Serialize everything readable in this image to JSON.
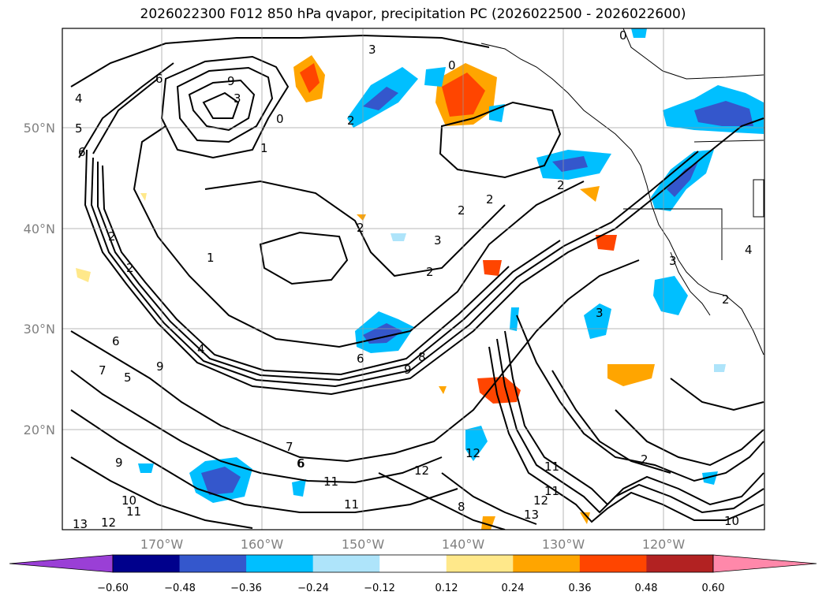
{
  "title": "2026022300 F012 850 hPa qvapor, precipitation PC (2026022500 - 2026022600)",
  "map": {
    "lat_ticks": [
      "50°N",
      "40°N",
      "30°N",
      "20°N"
    ],
    "lon_ticks": [
      "170°W",
      "160°W",
      "150°W",
      "140°W",
      "130°W",
      "120°W"
    ],
    "contour_labels": [
      "3",
      "4",
      "6",
      "5",
      "6",
      "9",
      "0",
      "3",
      "1",
      "2",
      "0",
      "0",
      "2",
      "2",
      "2",
      "2",
      "1",
      "2",
      "3",
      "2",
      "2",
      "4",
      "6",
      "8",
      "9",
      "5",
      "7",
      "9",
      "6",
      "7",
      "6",
      "11",
      "11",
      "12",
      "12",
      "11",
      "12",
      "11",
      "13",
      "12",
      "8",
      "11",
      "10",
      "13",
      "10",
      "9",
      "2",
      "3",
      "3",
      "4",
      "2",
      "6"
    ]
  },
  "colorbar": {
    "tick_labels": [
      "−0.60",
      "−0.48",
      "−0.36",
      "−0.24",
      "−0.12",
      "0.12",
      "0.24",
      "0.36",
      "0.48",
      "0.60"
    ],
    "colors": [
      "#9a3fd6",
      "#00008c",
      "#3457cc",
      "#00bfff",
      "#aee4fa",
      "#ffffff",
      "#ffe88a",
      "#ffa500",
      "#ff4500",
      "#b22222",
      "#ff88aa"
    ]
  }
}
